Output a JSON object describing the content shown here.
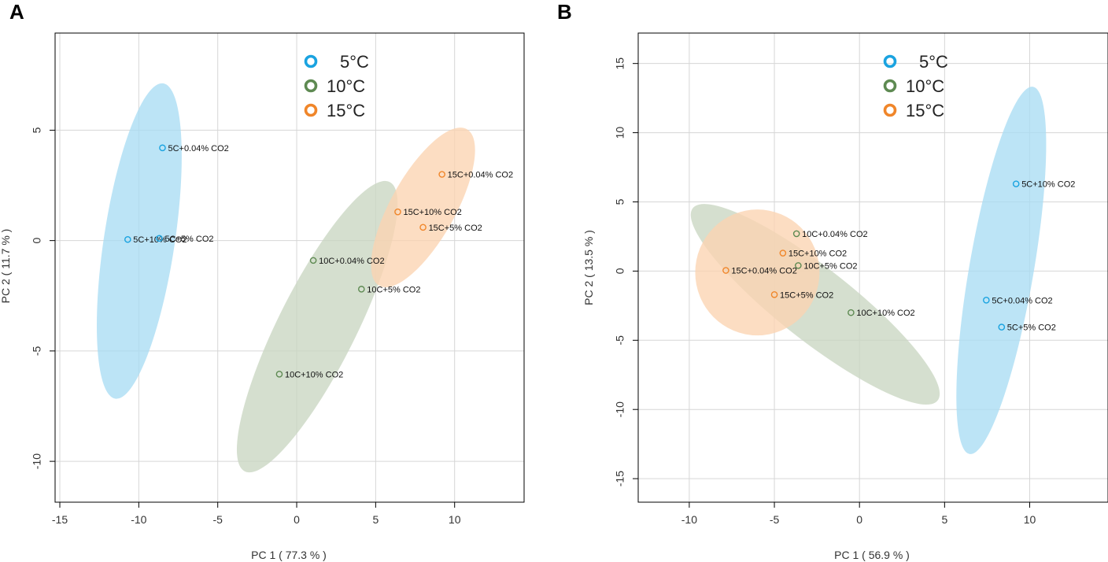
{
  "colors": {
    "c5": "#1aa3e0",
    "c10": "#5e8a52",
    "c15": "#f0862a",
    "e5": "#a9dcf4",
    "e10": "#c9d6c2",
    "e15": "#fbd3b1"
  },
  "legend": [
    {
      "label": "5°C",
      "group": "5"
    },
    {
      "label": "10°C",
      "group": "10"
    },
    {
      "label": "15°C",
      "group": "15"
    }
  ],
  "chart_data": [
    {
      "type": "scatter",
      "panel": "A",
      "title": "",
      "xlabel": "PC 1 ( 77.3 % )",
      "ylabel": "PC 2 ( 11.7 % )",
      "xlim": [
        -15.3,
        14.4
      ],
      "ylim": [
        -11.85,
        9.4
      ],
      "xticks": [
        -15,
        -10,
        -5,
        0,
        5,
        10
      ],
      "yticks": [
        -10,
        -5,
        0,
        5
      ],
      "points": [
        {
          "label": "5C+0.04% CO2",
          "group": "5",
          "x": -8.5,
          "y": 4.2
        },
        {
          "label": "5C+10% CO2",
          "group": "5",
          "x": -10.7,
          "y": 0.05
        },
        {
          "label": "5C+5% CO2",
          "group": "5",
          "x": -8.7,
          "y": 0.1
        },
        {
          "label": "10C+0.04% CO2",
          "group": "10",
          "x": 1.05,
          "y": -0.9
        },
        {
          "label": "10C+5% CO2",
          "group": "10",
          "x": 4.1,
          "y": -2.2
        },
        {
          "label": "10C+10% CO2",
          "group": "10",
          "x": -1.1,
          "y": -6.05
        },
        {
          "label": "15C+0.04% CO2",
          "group": "15",
          "x": 9.2,
          "y": 3.0
        },
        {
          "label": "15C+10% CO2",
          "group": "15",
          "x": 6.4,
          "y": 1.3
        },
        {
          "label": "15C+5% CO2",
          "group": "15",
          "x": 8.0,
          "y": 0.6
        }
      ],
      "ellipses": [
        {
          "group": "5",
          "cx": -9.97,
          "cy": -0.02,
          "rx": 2.2,
          "ry": 7.3,
          "angle": 78
        },
        {
          "group": "10",
          "cx": 1.3,
          "cy": -3.9,
          "rx": 2.15,
          "ry": 8.0,
          "angle": 55
        },
        {
          "group": "15",
          "cx": 8.0,
          "cy": 1.5,
          "rx": 1.75,
          "ry": 4.5,
          "angle": 52
        }
      ]
    },
    {
      "type": "scatter",
      "panel": "B",
      "title": "",
      "xlabel": "PC 1 ( 56.9 % )",
      "ylabel": "PC 2 ( 13.5 % )",
      "xlim": [
        -13.0,
        14.6
      ],
      "ylim": [
        -16.7,
        17.2
      ],
      "xticks": [
        -10,
        -5,
        0,
        5,
        10
      ],
      "yticks": [
        -15,
        -10,
        -5,
        0,
        5,
        10,
        15
      ],
      "points": [
        {
          "label": "5C+10% CO2",
          "group": "5",
          "x": 9.2,
          "y": 6.3
        },
        {
          "label": "5C+0.04% CO2",
          "group": "5",
          "x": 7.45,
          "y": -2.1
        },
        {
          "label": "5C+5% CO2",
          "group": "5",
          "x": 8.35,
          "y": -4.05
        },
        {
          "label": "10C+0.04% CO2",
          "group": "10",
          "x": -3.7,
          "y": 2.7
        },
        {
          "label": "10C+5% CO2",
          "group": "10",
          "x": -3.6,
          "y": 0.4
        },
        {
          "label": "10C+10% CO2",
          "group": "10",
          "x": -0.5,
          "y": -3.0
        },
        {
          "label": "15C+10% CO2",
          "group": "15",
          "x": -4.5,
          "y": 1.3
        },
        {
          "label": "15C+0.04% CO2",
          "group": "15",
          "x": -7.85,
          "y": 0.05
        },
        {
          "label": "15C+5% CO2",
          "group": "15",
          "x": -5.0,
          "y": -1.7
        }
      ],
      "ellipses": [
        {
          "group": "5",
          "cx": 8.33,
          "cy": 0.05,
          "rx": 1.9,
          "ry": 13.4,
          "angle": 82
        },
        {
          "group": "10",
          "cx": -2.6,
          "cy": -2.4,
          "rx": 2.35,
          "ry": 10.0,
          "angle": -44
        },
        {
          "group": "15",
          "cx": -6.0,
          "cy": -0.1,
          "rx": 4.55,
          "ry": 3.65,
          "angle": 0
        }
      ]
    }
  ]
}
